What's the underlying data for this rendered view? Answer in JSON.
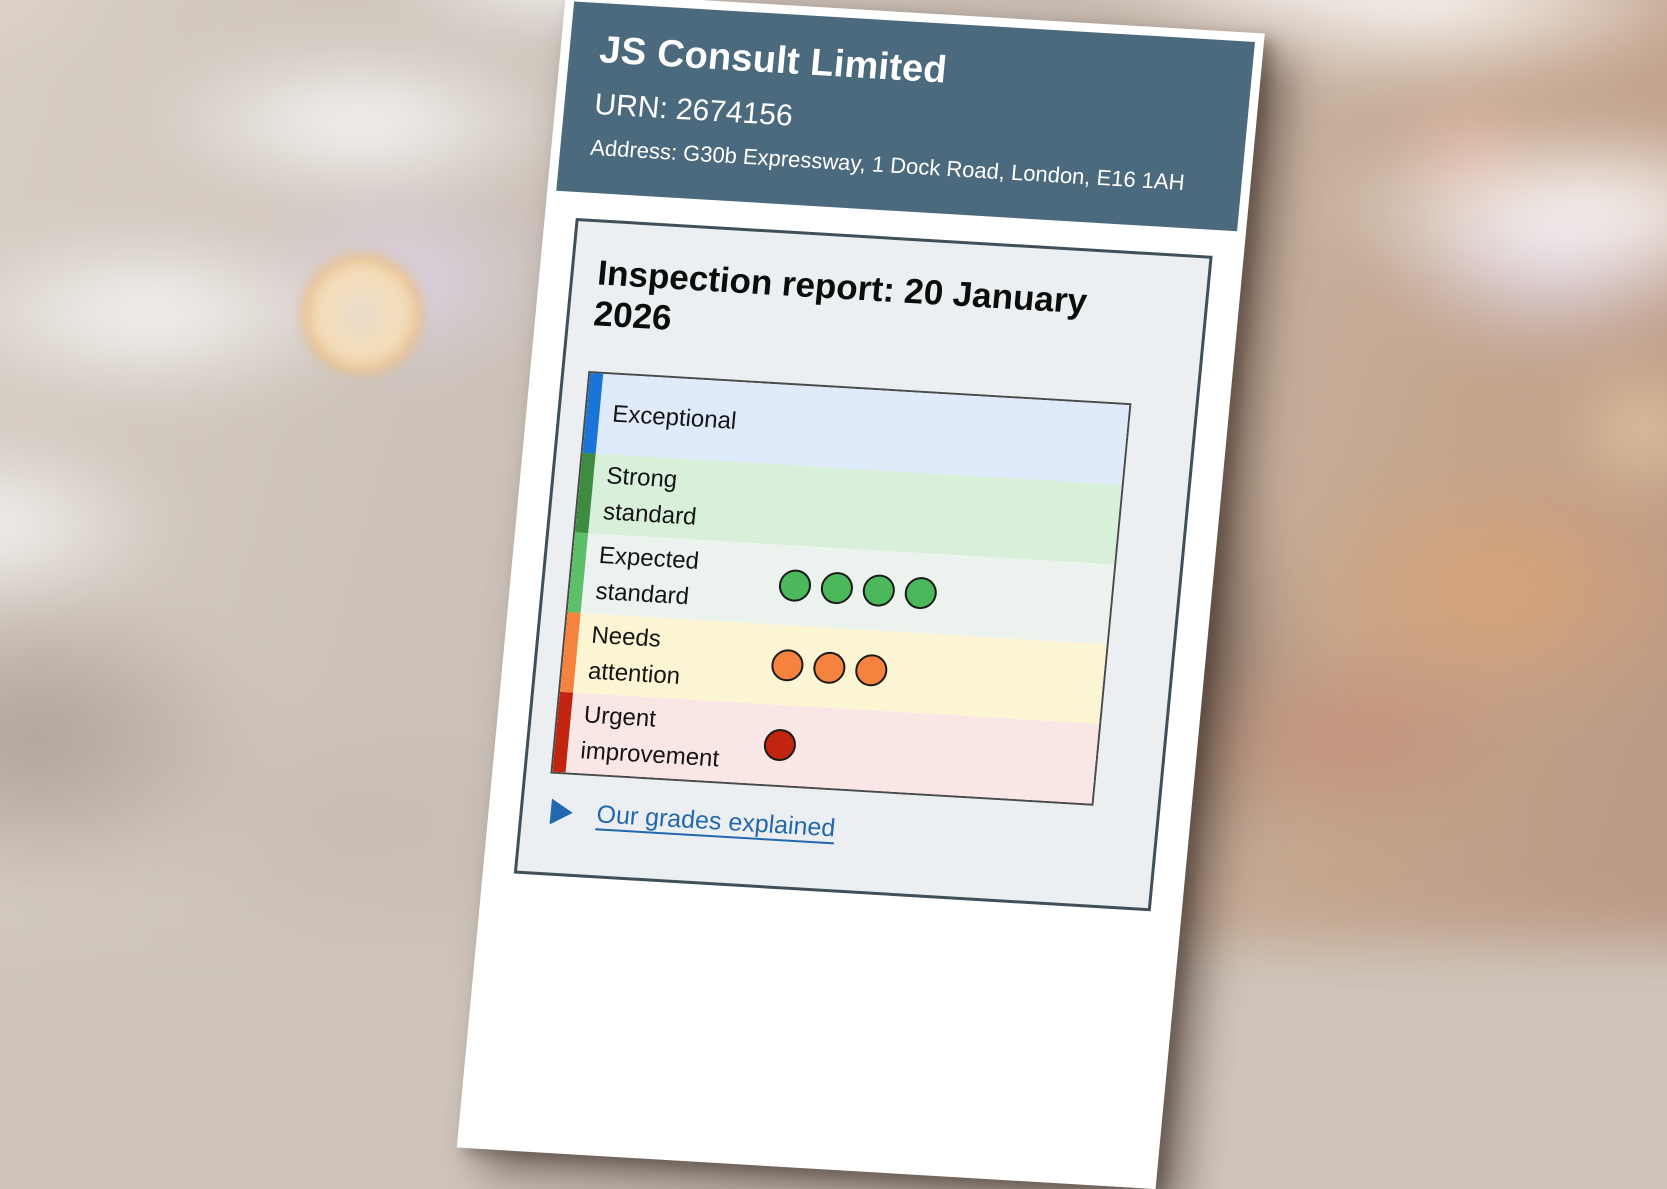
{
  "header": {
    "provider_name": "JS Consult Limited",
    "urn": "URN: 2674156",
    "address": "Address: G30b Expressway, 1 Dock Road, London, E16 1AH",
    "background_color": "#4b6a7e",
    "text_color": "#ffffff"
  },
  "report": {
    "heading": "Inspection report: 20 January 2026",
    "grades_link_label": "Our grades explained",
    "link_color": "#2368ae",
    "panel_background": "#eceff1",
    "panel_border_color": "#40505a"
  },
  "icons": {
    "grades_toggle": "play-triangle-icon",
    "grade_marker": "filled-circle"
  },
  "chart_data": {
    "type": "table",
    "title": "Inspection grade scale with awarded grade markers",
    "categories": [
      "Exceptional",
      "Strong standard",
      "Expected standard",
      "Needs attention",
      "Urgent improvement"
    ],
    "values": [
      0,
      0,
      4,
      3,
      1
    ],
    "legend_position": "none",
    "grid": false,
    "rows": [
      {
        "label": "Exceptional",
        "dots": 0,
        "dot_color": null,
        "bar_color": "#1b74d8",
        "row_color": "#dfeafa"
      },
      {
        "label": "Strong standard",
        "dots": 0,
        "dot_color": null,
        "bar_color": "#3d8c41",
        "row_color": "#d8efda"
      },
      {
        "label": "Expected standard",
        "dots": 4,
        "dot_color": "#4cb85c",
        "bar_color": "#5dbf69",
        "row_color": "#ecf3ee"
      },
      {
        "label": "Needs attention",
        "dots": 3,
        "dot_color": "#f5823e",
        "bar_color": "#f5823e",
        "row_color": "#fcf5d3"
      },
      {
        "label": "Urgent improvement",
        "dots": 1,
        "dot_color": "#c1240f",
        "bar_color": "#c1240f",
        "row_color": "#fae7e5"
      }
    ]
  }
}
